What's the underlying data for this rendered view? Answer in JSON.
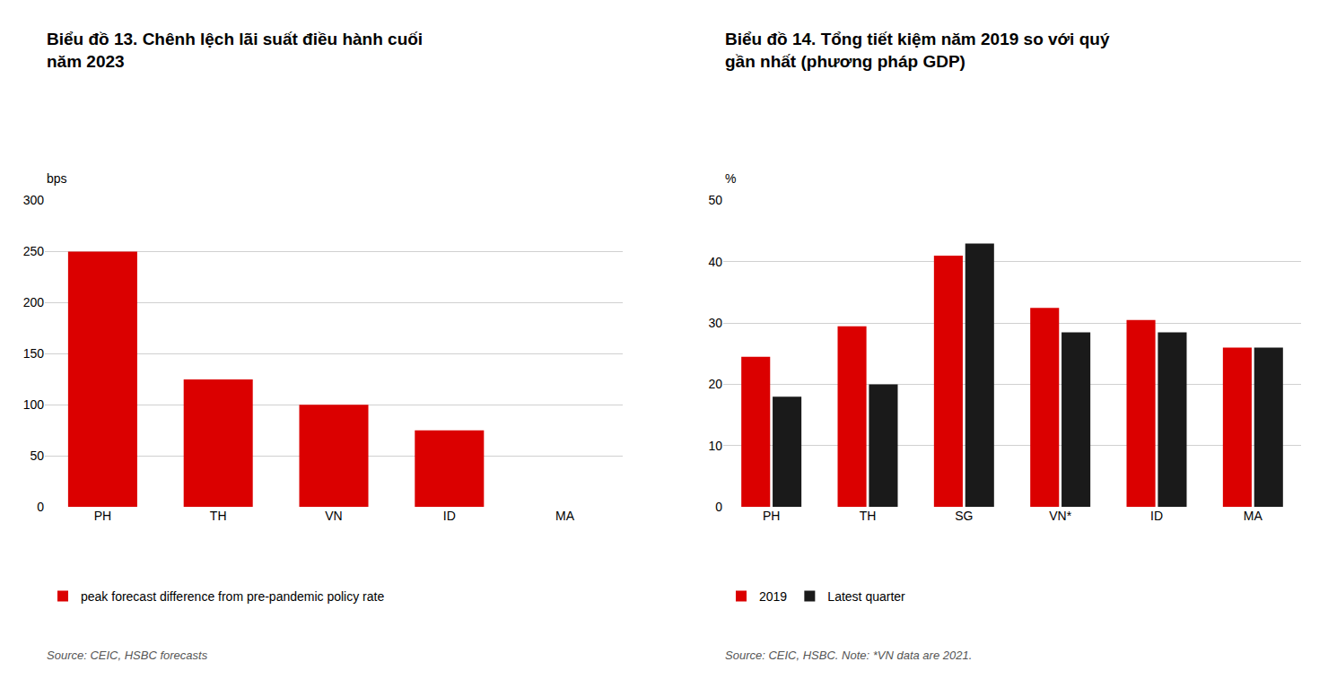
{
  "chart_data": [
    {
      "type": "bar",
      "title": "Biểu đồ 13. Chênh lệch lãi suất điều hành cuối\nnăm 2023",
      "ylabel": "bps",
      "categories": [
        "PH",
        "TH",
        "VN",
        "ID",
        "MA"
      ],
      "series": [
        {
          "name": "peak forecast difference from pre-pandemic policy rate",
          "color": "#db0000",
          "values": [
            250,
            125,
            100,
            75,
            0
          ]
        }
      ],
      "ylim": [
        0,
        300
      ],
      "yticks": [
        0,
        50,
        100,
        150,
        200,
        250,
        300
      ],
      "grid": true,
      "legend": "bottom",
      "annotations": [
        "Source: CEIC, HSBC forecasts"
      ]
    },
    {
      "type": "bar",
      "title": "Biểu đồ 14. Tổng tiết kiệm năm 2019 so với quý\ngần nhất (phương pháp GDP)",
      "ylabel": "%",
      "categories": [
        "PH",
        "TH",
        "SG",
        "VN*",
        "ID",
        "MA"
      ],
      "series": [
        {
          "name": "2019",
          "color": "#db0000",
          "values": [
            24.5,
            29.5,
            41.0,
            32.5,
            30.5,
            26.0
          ]
        },
        {
          "name": "Latest quarter",
          "color": "#1a1a1a",
          "values": [
            18.0,
            20.0,
            43.0,
            28.5,
            28.5,
            26.0
          ]
        }
      ],
      "ylim": [
        0,
        50
      ],
      "yticks": [
        0,
        10,
        20,
        30,
        40,
        50
      ],
      "grid": true,
      "legend": "bottom",
      "annotations": [
        "Source: CEIC, HSBC. Note: *VN data are 2021."
      ]
    }
  ]
}
